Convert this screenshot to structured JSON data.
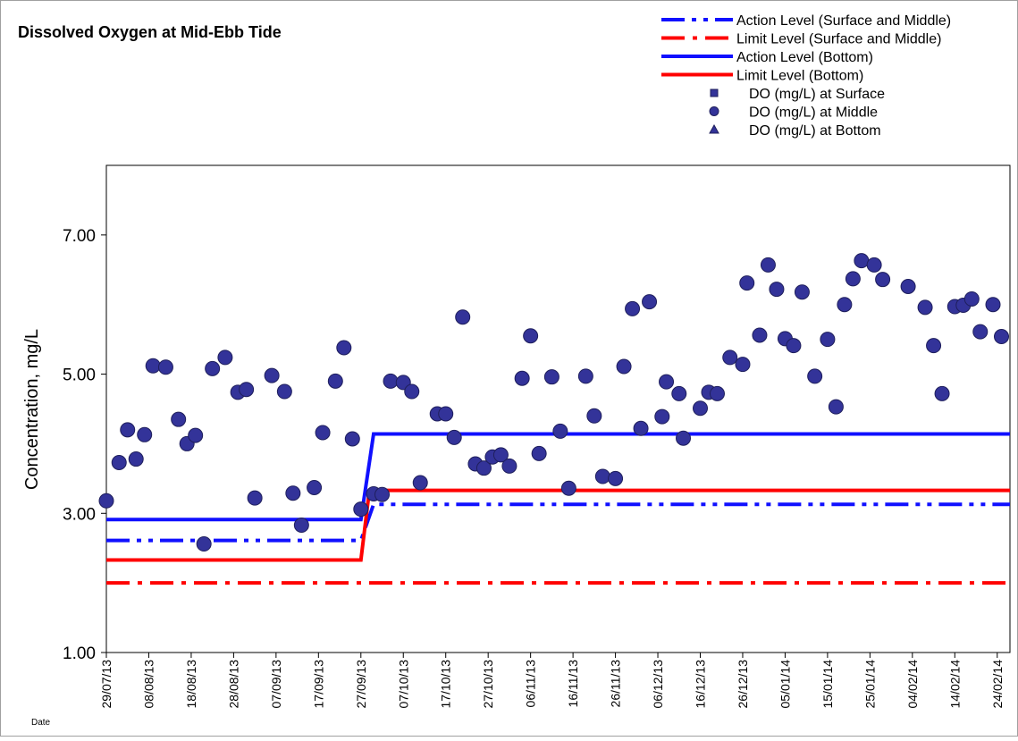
{
  "chart_data": {
    "type": "line",
    "title": "Dissolved Oxygen at Mid-Ebb Tide",
    "y_label": "Concentration, mg/L",
    "x_label": "Date",
    "legend": "top-right",
    "grid": false,
    "xlim": [
      "2013-07-29",
      "2014-02-27"
    ],
    "ylim": [
      1,
      8
    ],
    "yticks": [
      {
        "value": 1,
        "label": "1.00"
      },
      {
        "value": 3,
        "label": "3.00"
      },
      {
        "value": 5,
        "label": "5.00"
      },
      {
        "value": 7,
        "label": "7.00"
      }
    ],
    "xticks": [
      {
        "value": "2013-07-29",
        "label": "29/07/13"
      },
      {
        "value": "2013-08-08",
        "label": "08/08/13"
      },
      {
        "value": "2013-08-18",
        "label": "18/08/13"
      },
      {
        "value": "2013-08-28",
        "label": "28/08/13"
      },
      {
        "value": "2013-09-07",
        "label": "07/09/13"
      },
      {
        "value": "2013-09-17",
        "label": "17/09/13"
      },
      {
        "value": "2013-09-27",
        "label": "27/09/13"
      },
      {
        "value": "2013-10-07",
        "label": "07/10/13"
      },
      {
        "value": "2013-10-17",
        "label": "17/10/13"
      },
      {
        "value": "2013-10-27",
        "label": "27/10/13"
      },
      {
        "value": "2013-11-06",
        "label": "06/11/13"
      },
      {
        "value": "2013-11-16",
        "label": "16/11/13"
      },
      {
        "value": "2013-11-26",
        "label": "26/11/13"
      },
      {
        "value": "2013-12-06",
        "label": "06/12/13"
      },
      {
        "value": "2013-12-16",
        "label": "16/12/13"
      },
      {
        "value": "2013-12-26",
        "label": "26/12/13"
      },
      {
        "value": "2014-01-05",
        "label": "05/01/14"
      },
      {
        "value": "2014-01-15",
        "label": "15/01/14"
      },
      {
        "value": "2014-01-25",
        "label": "25/01/14"
      },
      {
        "value": "2014-02-04",
        "label": "04/02/14"
      },
      {
        "value": "2014-02-14",
        "label": "14/02/14"
      },
      {
        "value": "2014-02-24",
        "label": "24/02/14"
      }
    ],
    "series": [
      {
        "name": "Action Level (Surface and Middle)",
        "type": "line",
        "dash": "dash-dot-dot",
        "color": "#1010ff",
        "x": [
          "2013-07-29",
          "2013-09-27",
          "2013-09-30",
          "2014-02-27"
        ],
        "values": [
          2.61,
          2.61,
          3.13,
          3.13
        ]
      },
      {
        "name": "Limit Level (Surface and Middle)",
        "type": "line",
        "dash": "dash-dot",
        "color": "#ff0000",
        "x": [
          "2013-07-29",
          "2014-02-27"
        ],
        "values": [
          2.0,
          2.0
        ]
      },
      {
        "name": "Action Level (Bottom)",
        "type": "line",
        "dash": "solid",
        "color": "#1010ff",
        "x": [
          "2013-07-29",
          "2013-09-27",
          "2013-09-30",
          "2014-02-27"
        ],
        "values": [
          2.91,
          2.91,
          4.14,
          4.14
        ]
      },
      {
        "name": "Limit Level (Bottom)",
        "type": "line",
        "dash": "solid",
        "color": "#ff0000",
        "x": [
          "2013-07-29",
          "2013-09-27",
          "2013-09-29",
          "2014-02-27"
        ],
        "values": [
          2.33,
          2.33,
          3.33,
          3.33
        ]
      },
      {
        "name": "DO (mg/L) at Surface",
        "type": "scatter",
        "marker": "square",
        "color": "#333399",
        "x": [],
        "values": []
      },
      {
        "name": "DO (mg/L) at Middle",
        "type": "scatter",
        "marker": "circle",
        "color": "#333399",
        "x": [
          "2013-07-29",
          "2013-08-01",
          "2013-08-03",
          "2013-08-05",
          "2013-08-07",
          "2013-08-09",
          "2013-08-12",
          "2013-08-15",
          "2013-08-17",
          "2013-08-19",
          "2013-08-21",
          "2013-08-23",
          "2013-08-26",
          "2013-08-29",
          "2013-08-31",
          "2013-09-02",
          "2013-09-06",
          "2013-09-09",
          "2013-09-11",
          "2013-09-13",
          "2013-09-16",
          "2013-09-18",
          "2013-09-21",
          "2013-09-23",
          "2013-09-25",
          "2013-09-27",
          "2013-09-30",
          "2013-10-02",
          "2013-10-04",
          "2013-10-07",
          "2013-10-09",
          "2013-10-11",
          "2013-10-15",
          "2013-10-17",
          "2013-10-19",
          "2013-10-21",
          "2013-10-24",
          "2013-10-26",
          "2013-10-28",
          "2013-10-30",
          "2013-11-01",
          "2013-11-04",
          "2013-11-06",
          "2013-11-08",
          "2013-11-11",
          "2013-11-13",
          "2013-11-15",
          "2013-11-19",
          "2013-11-21",
          "2013-11-23",
          "2013-11-26",
          "2013-11-28",
          "2013-11-30",
          "2013-12-02",
          "2013-12-04",
          "2013-12-07",
          "2013-12-08",
          "2013-12-11",
          "2013-12-12",
          "2013-12-16",
          "2013-12-18",
          "2013-12-20",
          "2013-12-23",
          "2013-12-26",
          "2013-12-27",
          "2013-12-30",
          "2014-01-01",
          "2014-01-03",
          "2014-01-05",
          "2014-01-07",
          "2014-01-09",
          "2014-01-12",
          "2014-01-15",
          "2014-01-17",
          "2014-01-19",
          "2014-01-21",
          "2014-01-23",
          "2014-01-26",
          "2014-01-28",
          "2014-02-03",
          "2014-02-07",
          "2014-02-09",
          "2014-02-11",
          "2014-02-14",
          "2014-02-16",
          "2014-02-18",
          "2014-02-20",
          "2014-02-23",
          "2014-02-25"
        ],
        "values": [
          3.18,
          3.73,
          4.2,
          3.78,
          4.13,
          5.12,
          5.1,
          4.35,
          4.0,
          4.12,
          2.56,
          5.08,
          5.24,
          4.74,
          4.78,
          3.22,
          4.98,
          4.75,
          3.29,
          2.83,
          3.37,
          4.16,
          4.9,
          5.38,
          4.07,
          3.06,
          3.28,
          3.27,
          4.9,
          4.88,
          4.75,
          3.44,
          4.43,
          4.43,
          4.09,
          5.82,
          3.71,
          3.65,
          3.81,
          3.84,
          3.68,
          4.94,
          5.55,
          3.86,
          4.96,
          4.18,
          3.36,
          4.97,
          4.4,
          3.53,
          3.5,
          5.11,
          5.94,
          4.22,
          6.04,
          4.39,
          4.89,
          4.72,
          4.08,
          4.51,
          4.74,
          4.72,
          5.24,
          5.14,
          6.31,
          5.56,
          6.57,
          6.22,
          5.51,
          5.41,
          6.18,
          4.97,
          5.5,
          4.53,
          6.0,
          6.37,
          6.63,
          6.57,
          6.36,
          6.26,
          5.96,
          5.41,
          4.72,
          5.97,
          5.99,
          6.08,
          5.61,
          6.0,
          5.54
        ]
      },
      {
        "name": "DO (mg/L) at Bottom",
        "type": "scatter",
        "marker": "triangle",
        "color": "#333399",
        "x": [],
        "values": []
      }
    ]
  }
}
